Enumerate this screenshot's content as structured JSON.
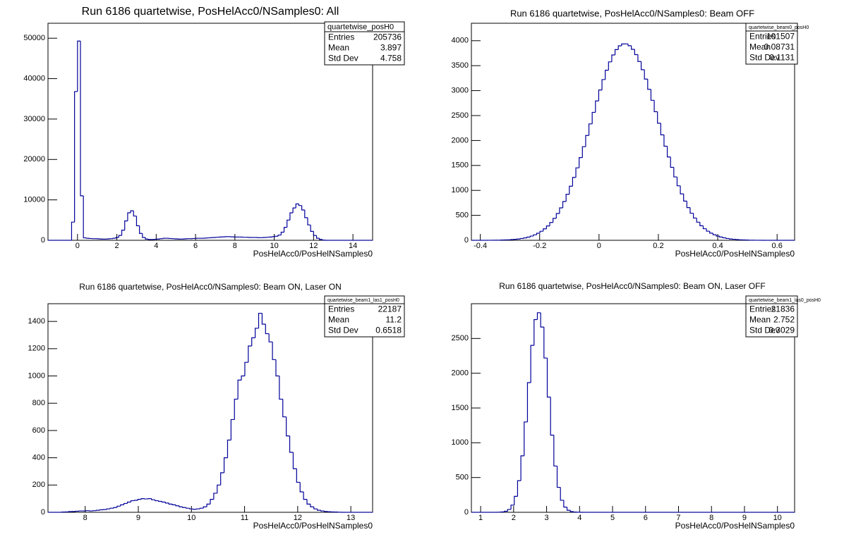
{
  "chart_data": [
    {
      "type": "histogram",
      "title": "Run 6186 quartetwise, PosHelAcc0/NSamples0: All",
      "xlabel": "PosHelAcc0/PosHelNSamples0",
      "color": "#000099",
      "xlim": [
        -1.5,
        15
      ],
      "ylim": [
        0,
        53700
      ],
      "xticks": [
        0,
        2,
        4,
        6,
        8,
        10,
        12,
        14
      ],
      "yticks": [
        0,
        10000,
        20000,
        30000,
        40000,
        50000
      ],
      "bins": [
        -1.5,
        -1.35,
        -1.2,
        -1.05,
        -0.9,
        -0.75,
        -0.6,
        -0.45,
        -0.3,
        -0.15,
        0,
        0.15,
        0.3,
        0.45,
        0.6,
        0.75,
        0.9,
        1.05,
        1.2,
        1.35,
        1.5,
        1.65,
        1.8,
        1.95,
        2.1,
        2.25,
        2.4,
        2.55,
        2.7,
        2.85,
        3,
        3.15,
        3.3,
        3.45,
        3.6,
        3.75,
        3.9,
        4.05,
        4.2,
        4.35,
        4.5,
        4.65,
        4.8,
        4.95,
        5.1,
        5.25,
        5.4,
        5.55,
        5.7,
        5.85,
        6,
        6.15,
        6.3,
        6.45,
        6.6,
        6.75,
        6.9,
        7.05,
        7.2,
        7.35,
        7.5,
        7.65,
        7.8,
        7.95,
        8.1,
        8.25,
        8.4,
        8.55,
        8.7,
        8.85,
        9,
        9.15,
        9.3,
        9.45,
        9.6,
        9.75,
        9.9,
        10.05,
        10.2,
        10.35,
        10.5,
        10.65,
        10.8,
        10.95,
        11.1,
        11.25,
        11.4,
        11.55,
        11.7,
        11.85,
        12,
        12.15,
        12.3,
        12.45,
        12.6,
        12.75,
        12.9,
        13.05,
        13.2,
        13.35,
        13.5,
        13.65,
        13.8,
        13.95,
        14.1,
        14.25,
        14.4,
        14.55,
        14.7,
        14.85,
        15
      ],
      "counts": [
        0,
        0,
        0,
        0,
        0,
        0,
        0,
        0,
        4500,
        36800,
        49300,
        11000,
        600,
        500,
        450,
        400,
        400,
        350,
        300,
        300,
        350,
        400,
        500,
        700,
        1200,
        2500,
        4800,
        6800,
        7300,
        6000,
        3600,
        1700,
        700,
        300,
        200,
        200,
        250,
        300,
        400,
        500,
        500,
        450,
        400,
        350,
        300,
        300,
        350,
        400,
        400,
        450,
        500,
        500,
        500,
        550,
        600,
        650,
        700,
        750,
        800,
        850,
        900,
        900,
        850,
        800,
        800,
        800,
        750,
        750,
        700,
        700,
        700,
        650,
        650,
        700,
        750,
        800,
        900,
        1000,
        1300,
        2000,
        3200,
        5000,
        6800,
        8000,
        9000,
        8600,
        7500,
        5600,
        3800,
        2200,
        1200,
        500,
        200,
        50,
        0,
        0,
        0,
        0,
        0,
        0,
        0,
        0,
        0,
        0,
        0,
        0,
        0,
        0,
        0,
        0
      ],
      "stats": {
        "name": "quartetwise_posH0",
        "labels": [
          "Entries",
          "Mean",
          "Std Dev"
        ],
        "values": [
          205736,
          3.897,
          4.758
        ]
      }
    },
    {
      "type": "histogram",
      "title": "Run 6186 quartetwise, PosHelAcc0/NSamples0: Beam OFF",
      "xlabel": "PosHelAcc0/PosHelNSamples0",
      "color": "#000099",
      "xlim": [
        -0.43,
        0.659
      ],
      "ylim": [
        0,
        4350
      ],
      "xticks": [
        -0.4,
        -0.2,
        0,
        0.2,
        0.4,
        0.6
      ],
      "yticks": [
        0,
        500,
        1000,
        1500,
        2000,
        2500,
        3000,
        3500,
        4000
      ],
      "bins": [
        -0.43,
        -0.419,
        -0.408,
        -0.397,
        -0.386,
        -0.375,
        -0.364,
        -0.353,
        -0.342,
        -0.331,
        -0.32,
        -0.309,
        -0.298,
        -0.287,
        -0.276,
        -0.265,
        -0.254,
        -0.243,
        -0.232,
        -0.221,
        -0.21,
        -0.199,
        -0.188,
        -0.177,
        -0.166,
        -0.155,
        -0.144,
        -0.133,
        -0.122,
        -0.111,
        -0.1,
        -0.089,
        -0.078,
        -0.067,
        -0.056,
        -0.045,
        -0.034,
        -0.023,
        -0.012,
        -0.001,
        0.01,
        0.021,
        0.032,
        0.043,
        0.054,
        0.065,
        0.076,
        0.087,
        0.098,
        0.109,
        0.12,
        0.131,
        0.142,
        0.153,
        0.164,
        0.175,
        0.186,
        0.197,
        0.208,
        0.219,
        0.23,
        0.241,
        0.252,
        0.263,
        0.274,
        0.285,
        0.296,
        0.307,
        0.318,
        0.329,
        0.34,
        0.351,
        0.362,
        0.373,
        0.384,
        0.395,
        0.406,
        0.417,
        0.428,
        0.439,
        0.45,
        0.461,
        0.472,
        0.483,
        0.494,
        0.505,
        0.516,
        0.527,
        0.538,
        0.549,
        0.56,
        0.571,
        0.582,
        0.593,
        0.604,
        0.615,
        0.626,
        0.637,
        0.648,
        0.659
      ],
      "counts": [
        0,
        0,
        0,
        0,
        0,
        1,
        1,
        2,
        3,
        5,
        7,
        10,
        14,
        19,
        26,
        36,
        48,
        64,
        84,
        110,
        141,
        181,
        229,
        288,
        357,
        440,
        537,
        650,
        777,
        922,
        1084,
        1260,
        1452,
        1658,
        1876,
        2101,
        2333,
        2564,
        2793,
        3012,
        3221,
        3409,
        3576,
        3714,
        3822,
        3898,
        3935,
        3936,
        3900,
        3827,
        3721,
        3584,
        3420,
        3231,
        3026,
        2806,
        2578,
        2346,
        2113,
        1886,
        1670,
        1462,
        1270,
        1092,
        930,
        786,
        655,
        543,
        446,
        363,
        291,
        232,
        183,
        143,
        111,
        85,
        65,
        49,
        36,
        27,
        20,
        14,
        10,
        7,
        5,
        3,
        2,
        1,
        1,
        0,
        0,
        0,
        0,
        0,
        0,
        0,
        0,
        0,
        0
      ],
      "stats": {
        "name": "quartetwise_beam0_posH0",
        "labels": [
          "Entries",
          "Mean",
          "Std Dev"
        ],
        "values": [
          101507,
          0.08731,
          0.1131
        ]
      }
    },
    {
      "type": "histogram",
      "title": "Run 6186 quartetwise, PosHelAcc0/NSamples0: Beam ON, Laser ON",
      "xlabel": "PosHelAcc0/PosHelNSamples0",
      "color": "#000099",
      "xlim": [
        7.3,
        13.41
      ],
      "ylim": [
        0,
        1530
      ],
      "xticks": [
        8,
        9,
        10,
        11,
        12,
        13
      ],
      "yticks": [
        0,
        200,
        400,
        600,
        800,
        1000,
        1200,
        1400
      ],
      "bins": [
        7.3,
        7.365,
        7.43,
        7.495,
        7.56,
        7.625,
        7.69,
        7.755,
        7.82,
        7.885,
        7.95,
        8.015,
        8.08,
        8.145,
        8.21,
        8.275,
        8.34,
        8.405,
        8.47,
        8.535,
        8.6,
        8.665,
        8.73,
        8.795,
        8.86,
        8.925,
        8.99,
        9.055,
        9.12,
        9.185,
        9.25,
        9.315,
        9.38,
        9.445,
        9.51,
        9.575,
        9.64,
        9.705,
        9.77,
        9.835,
        9.9,
        9.965,
        10.03,
        10.095,
        10.16,
        10.225,
        10.29,
        10.355,
        10.42,
        10.485,
        10.55,
        10.615,
        10.68,
        10.745,
        10.81,
        10.875,
        10.94,
        11.005,
        11.07,
        11.135,
        11.2,
        11.265,
        11.33,
        11.395,
        11.46,
        11.525,
        11.59,
        11.655,
        11.72,
        11.785,
        11.85,
        11.915,
        11.98,
        12.045,
        12.11,
        12.175,
        12.24,
        12.305,
        12.37,
        12.435,
        12.5,
        12.565,
        12.63,
        12.695,
        12.76,
        12.825,
        12.89,
        12.955,
        13.02,
        13.085,
        13.15,
        13.215,
        13.28,
        13.345,
        13.41
      ],
      "counts": [
        0,
        0,
        0,
        0,
        2,
        3,
        5,
        6,
        8,
        10,
        10,
        12,
        10,
        12,
        15,
        18,
        20,
        25,
        30,
        35,
        45,
        55,
        65,
        75,
        85,
        88,
        95,
        100,
        98,
        100,
        92,
        85,
        80,
        75,
        68,
        60,
        55,
        48,
        40,
        35,
        30,
        25,
        22,
        25,
        30,
        40,
        60,
        95,
        140,
        200,
        290,
        400,
        530,
        680,
        830,
        970,
        1000,
        1100,
        1220,
        1280,
        1350,
        1460,
        1380,
        1310,
        1250,
        1120,
        1000,
        830,
        700,
        560,
        440,
        320,
        220,
        150,
        95,
        60,
        40,
        25,
        15,
        10,
        6,
        4,
        3,
        2,
        1,
        0,
        0,
        0,
        0,
        0,
        0,
        0,
        0,
        0
      ],
      "stats": {
        "name": "quartetwise_beam1_las1_posH0",
        "labels": [
          "Entries",
          "Mean",
          "Std Dev"
        ],
        "values": [
          22187,
          11.2,
          0.6518
        ]
      }
    },
    {
      "type": "histogram",
      "title": "Run 6186 quartetwise, PosHelAcc0/NSamples0: Beam ON, Laser OFF",
      "xlabel": "PosHelAcc0/PosHelNSamples0",
      "color": "#000099",
      "xlim": [
        0.72,
        10.52
      ],
      "ylim": [
        0,
        3000
      ],
      "xticks": [
        1,
        2,
        3,
        4,
        5,
        6,
        7,
        8,
        9,
        10
      ],
      "yticks": [
        0,
        500,
        1000,
        1500,
        2000,
        2500
      ],
      "bins": [
        0.72,
        0.82,
        0.92,
        1.02,
        1.12,
        1.22,
        1.32,
        1.42,
        1.52,
        1.62,
        1.72,
        1.82,
        1.92,
        2.02,
        2.12,
        2.22,
        2.32,
        2.42,
        2.52,
        2.62,
        2.72,
        2.82,
        2.92,
        3.02,
        3.12,
        3.22,
        3.32,
        3.42,
        3.52,
        3.62,
        3.72,
        3.82,
        3.92,
        4.02,
        4.12,
        4.22,
        4.32,
        4.42,
        4.52,
        4.62,
        4.72,
        4.82,
        4.92,
        5.02,
        5.12,
        5.22,
        5.32,
        5.42,
        5.52,
        5.62,
        5.72,
        5.82,
        5.92,
        6.02,
        6.12,
        6.22,
        6.32,
        6.42,
        6.52,
        6.62,
        6.72,
        6.82,
        6.92,
        7.02,
        7.12,
        7.22,
        7.32,
        7.42,
        7.52,
        7.62,
        7.72,
        7.82,
        7.92,
        8.02,
        8.12,
        8.22,
        8.32,
        8.42,
        8.52,
        8.62,
        8.72,
        8.82,
        8.92,
        9.02,
        9.12,
        9.22,
        9.32,
        9.42,
        9.52,
        9.62,
        9.72,
        9.82,
        9.92,
        10.02,
        10.12,
        10.22,
        10.32,
        10.42,
        10.52
      ],
      "counts": [
        0,
        0,
        0,
        0,
        0,
        0,
        0,
        0,
        2,
        5,
        15,
        41,
        103,
        229,
        455,
        812,
        1299,
        1865,
        2401,
        2772,
        2870,
        2664,
        2219,
        1657,
        1110,
        666,
        359,
        173,
        75,
        29,
        10,
        4,
        1,
        0,
        0,
        0,
        0,
        0,
        0,
        0,
        0,
        0,
        0,
        0,
        0,
        0,
        0,
        0,
        0,
        0,
        0,
        0,
        0,
        0,
        0,
        0,
        0,
        0,
        0,
        0,
        0,
        0,
        0,
        0,
        0,
        0,
        0,
        0,
        0,
        0,
        0,
        0,
        0,
        0,
        0,
        0,
        0,
        0,
        0,
        0,
        0,
        0,
        0,
        0,
        0,
        0,
        0,
        0,
        0,
        0,
        0,
        0,
        0,
        0,
        0,
        0,
        0,
        0
      ],
      "stats": {
        "name": "quartetwise_beam1_las0_posH0",
        "labels": [
          "Entries",
          "Mean",
          "Std Dev"
        ],
        "values": [
          21836,
          2.752,
          0.3029
        ]
      }
    }
  ]
}
